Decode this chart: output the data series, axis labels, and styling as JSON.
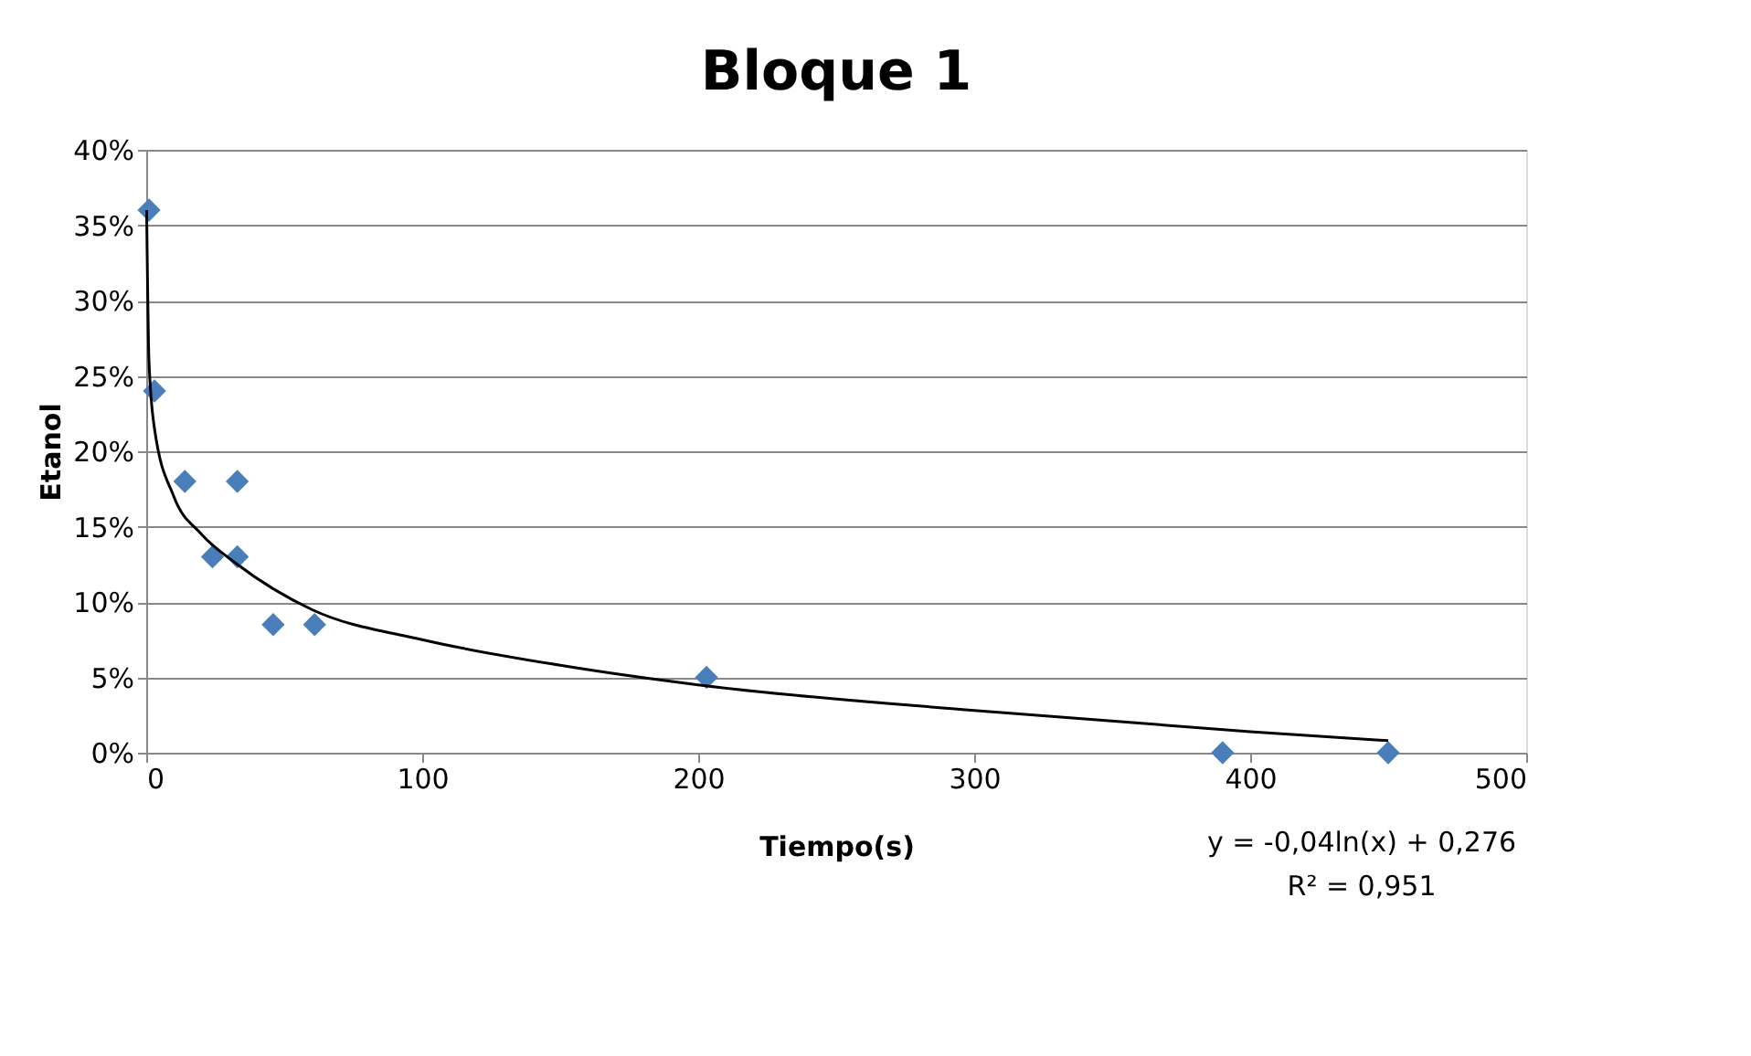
{
  "chart_data": {
    "type": "scatter",
    "title": "Bloque 1",
    "xlabel": "Tiempo(s)",
    "ylabel": "Etanol",
    "series": [
      {
        "color": "#4a7ebb",
        "marker": "diamond",
        "x": [
          1,
          3,
          14,
          33,
          24,
          33,
          46,
          61,
          203,
          390,
          450
        ],
        "values": [
          36,
          24,
          18,
          18,
          13,
          13,
          8.5,
          8.5,
          5,
          0,
          0
        ]
      },
      {
        "type": "line",
        "color": "#000000",
        "marker": "none",
        "line_style": "solid",
        "x": [
          0.15,
          1,
          3,
          10,
          20,
          33,
          60,
          100,
          150,
          200,
          300,
          400,
          450
        ],
        "values": [
          36,
          26,
          21.5,
          17,
          14.5,
          12.5,
          9.5,
          7.5,
          5.8,
          4.5,
          2.8,
          1.4,
          0.8
        ]
      }
    ],
    "xlim": [
      0,
      500
    ],
    "xticks": [
      0,
      100,
      200,
      300,
      400,
      500
    ],
    "ylim": [
      0,
      40
    ],
    "yticks": [
      {
        "value": 0,
        "label": "0%"
      },
      {
        "value": 5,
        "label": "5%"
      },
      {
        "value": 10,
        "label": "10%"
      },
      {
        "value": 15,
        "label": "15%"
      },
      {
        "value": 20,
        "label": "20%"
      },
      {
        "value": 25,
        "label": "25%"
      },
      {
        "value": 30,
        "label": "30%"
      },
      {
        "value": 35,
        "label": "35%"
      },
      {
        "value": 40,
        "label": "40%"
      }
    ],
    "grid": "y",
    "annotations": [
      "y = -0,04ln(x) + 0,276",
      "R² = 0,951"
    ]
  }
}
